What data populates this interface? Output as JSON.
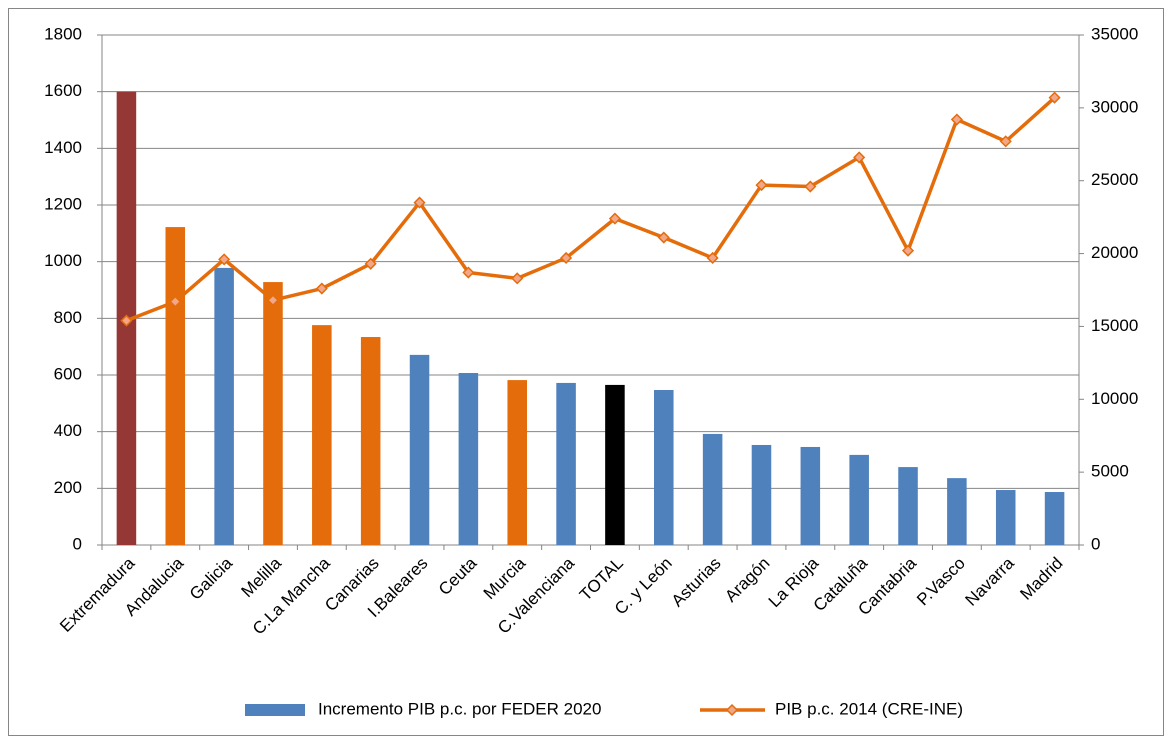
{
  "chart_data": {
    "type": "bar_line",
    "categories": [
      "Extremadura",
      "Andalucia",
      "Galicia",
      "Melilla",
      "C.La Mancha",
      "Canarias",
      "I.Baleares",
      "Ceuta",
      "Murcia",
      "C.Valenciana",
      "TOTAL",
      "C. y León",
      "Asturias",
      "Aragón",
      "La Rioja",
      "Cataluña",
      "Cantabria",
      "P.Vasco",
      "Navarra",
      "Madrid"
    ],
    "series": [
      {
        "name": "Incremento PIB p.c. por FEDER  2020",
        "type": "bar",
        "color": "#4f81bd",
        "colors": [
          "#953735",
          "#e46c0a",
          "#4f81bd",
          "#e46c0a",
          "#e46c0a",
          "#e46c0a",
          "#4f81bd",
          "#4f81bd",
          "#e46c0a",
          "#4f81bd",
          "#000000",
          "#4f81bd",
          "#4f81bd",
          "#4f81bd",
          "#4f81bd",
          "#4f81bd",
          "#4f81bd",
          "#4f81bd",
          "#4f81bd",
          "#4f81bd"
        ],
        "values": [
          1600,
          1122,
          978,
          928,
          776,
          734,
          671,
          607,
          582,
          572,
          565,
          547,
          392,
          353,
          346,
          318,
          275,
          236,
          194,
          187
        ]
      },
      {
        "name": "PIB p.c. 2014 (CRE-INE)",
        "type": "line",
        "axis": "y2",
        "color": "#e46c0a",
        "values": [
          15400,
          16700,
          19600,
          16800,
          17600,
          19300,
          23500,
          18700,
          18300,
          19700,
          22400,
          21100,
          19700,
          24700,
          24600,
          26600,
          20200,
          29200,
          27700,
          30700
        ]
      }
    ],
    "ylim": [
      0,
      1800
    ],
    "yticks": [
      0,
      200,
      400,
      600,
      800,
      1000,
      1200,
      1400,
      1600,
      1800
    ],
    "y2lim": [
      0,
      35000
    ],
    "y2ticks": [
      0,
      5000,
      10000,
      15000,
      20000,
      25000,
      30000,
      35000
    ],
    "grid": true,
    "legend": "bottom"
  }
}
